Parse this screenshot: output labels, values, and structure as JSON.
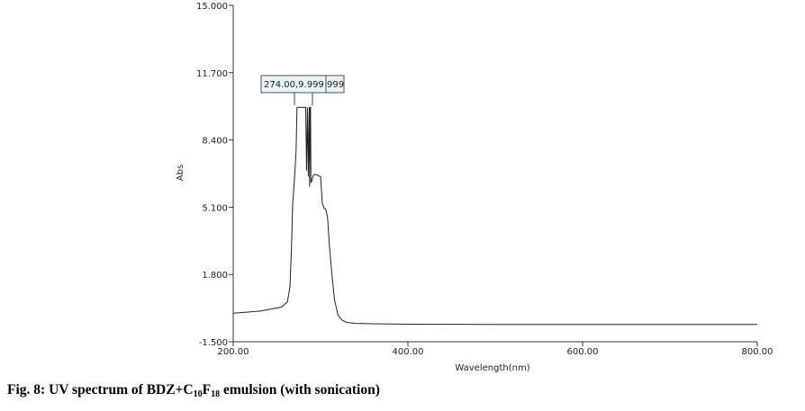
{
  "caption": {
    "label": "Fig. 8:",
    "text_before": "UV spectrum of BDZ+C",
    "sub1": "10",
    "mid": "F",
    "sub2": "18",
    "text_after": "emulsion (with sonication)"
  },
  "chart_data": {
    "type": "line",
    "title": "",
    "xlabel": "Wavelength(nm)",
    "ylabel": "Abs",
    "xlim": [
      200,
      800
    ],
    "ylim": [
      -1.5,
      15.0
    ],
    "x_ticks": [
      200,
      400,
      600,
      800
    ],
    "x_tick_labels": [
      "200.00",
      "400.00",
      "600.00",
      "800.00"
    ],
    "y_ticks": [
      -1.5,
      1.8,
      5.1,
      8.4,
      11.7,
      15.0
    ],
    "y_tick_labels": [
      "-1.500",
      "1.800",
      "5.100",
      "8.400",
      "11.700",
      "15.000"
    ],
    "grid": false,
    "annotation": {
      "labels": [
        "274.00,9.999",
        "999"
      ],
      "x": 274.0,
      "y": 9.999
    },
    "series": [
      {
        "x": [
          200,
          230,
          255,
          262,
          265,
          267,
          268,
          270,
          271,
          272,
          273,
          274,
          276,
          278,
          283,
          284,
          285,
          286,
          287,
          287.5,
          288,
          288.5,
          289,
          290,
          292,
          295,
          300,
          302,
          304,
          306,
          308,
          310,
          313,
          316,
          320,
          325,
          330,
          340,
          360,
          400,
          500,
          600,
          700,
          800
        ],
        "y": [
          -0.1,
          0.0,
          0.2,
          0.45,
          1.2,
          3.5,
          5.2,
          6.4,
          7.1,
          7.9,
          9.999,
          9.999,
          9.999,
          9.999,
          9.999,
          6.9,
          9.999,
          6.6,
          9.999,
          6.1,
          9.999,
          9.999,
          6.3,
          6.4,
          6.7,
          6.7,
          6.6,
          5.3,
          5.05,
          5.0,
          4.6,
          3.3,
          1.8,
          0.55,
          -0.2,
          -0.45,
          -0.55,
          -0.6,
          -0.62,
          -0.64,
          -0.65,
          -0.65,
          -0.65,
          -0.65
        ]
      }
    ]
  }
}
